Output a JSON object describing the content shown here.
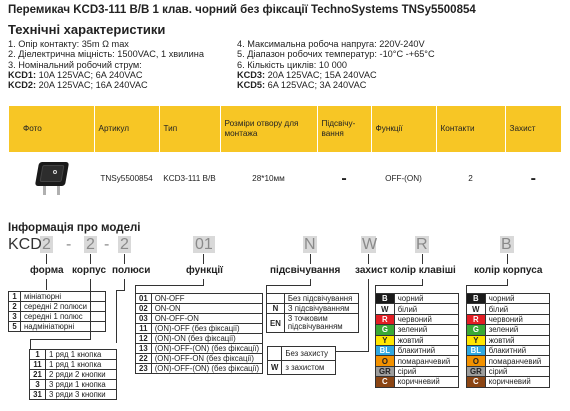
{
  "header": {
    "title": "Перемикач KCD3-111 B/B 1 клав. чорний без фіксації TechnoSystems TNSy5500854",
    "subtitle": "Технічні характеристики"
  },
  "specs_left": [
    "1. Опір контакту: 35m Ω  max",
    "2. Діелектрична міцність:  1500VAC, 1 хвилина",
    "3. Номінальний робочий струм:"
  ],
  "specs_left_models": [
    {
      "model": "KCD1:",
      "value": " 10A 125VAC; 6A 240VAC"
    },
    {
      "model": "KCD2:",
      "value": " 20A 125VAC; 16A 240VAC"
    }
  ],
  "specs_right": [
    "4. Максимальна робоча напруга: 220V-240V",
    "5. Діапазон робочих температур: -10°С -+65°С",
    "6. Кількість циклів: 10 000"
  ],
  "specs_right_models": [
    {
      "model": "KCD3:",
      "value": " 20A 125VAC; 15A 240VAC"
    },
    {
      "model": "KCD5:",
      "value": " 6A 125VAC; 3A 240VAC"
    }
  ],
  "table": {
    "headers": [
      "Фото",
      "Артикул",
      "Тип",
      "Розміри отвору для монтажа",
      "Підсвічу-вання",
      "Функції",
      "Контакти",
      "Захист"
    ],
    "row": {
      "article": "TNSy5500854",
      "type": "KCD3-111 B/B",
      "size": "28*10мм",
      "backlight": "-",
      "function": "OFF-(ON)",
      "contacts": "2",
      "protection": "-"
    }
  },
  "model_info": {
    "heading": "Інформація про моделі",
    "code": {
      "prefix": "KCD",
      "c1": "2",
      "sep1": "-",
      "c2": "2",
      "sep2": "-",
      "c3": "2",
      "c4": "01",
      "c5": "N",
      "c6": "W",
      "c7": "R",
      "c8": "B"
    },
    "labels": {
      "form": "форма",
      "body": "корпус",
      "poles": "полюси",
      "functions": "функції",
      "backlight": "підсвічування",
      "protection": "захист",
      "key_color": "колір клавіші",
      "body_color": "колір корпуса"
    },
    "form_options": [
      {
        "k": "1",
        "v": "мініатюрні"
      },
      {
        "k": "2",
        "v": "середні 2 полюси"
      },
      {
        "k": "3",
        "v": "середні 1 полюс"
      },
      {
        "k": "5",
        "v": "надмініатюрні"
      }
    ],
    "key_options": [
      {
        "k": "1",
        "v": "1 ряд 1 кнопка"
      },
      {
        "k": "11",
        "v": "1 ряд 1 кнопка"
      },
      {
        "k": "21",
        "v": "2 ряди 2 кнопки"
      },
      {
        "k": "3",
        "v": "3 ряди 1 кнопка"
      },
      {
        "k": "31",
        "v": "3 ряди 3 кнопки"
      }
    ],
    "function_options": [
      {
        "k": "01",
        "v": "ON-OFF"
      },
      {
        "k": "02",
        "v": "ON-ON"
      },
      {
        "k": "03",
        "v": "ON-OFF-ON"
      },
      {
        "k": "11",
        "v": "(ON)-OFF (без фіксації)"
      },
      {
        "k": "12",
        "v": "(ON)-ON (без фіксації)"
      },
      {
        "k": "13",
        "v": "(ON)-OFF-(ON) (без фіксації)"
      },
      {
        "k": "22",
        "v": "(ON)-OFF-ON (без фіксації)"
      },
      {
        "k": "23",
        "v": "(ON)-OFF-(ON) (без фіксації)"
      }
    ],
    "backlight_options": [
      {
        "k": "",
        "v": "Без підсвічування"
      },
      {
        "k": "N",
        "v": "З підсвічуванням"
      },
      {
        "k": "EN",
        "v": "3 точковим підсвічуванням"
      }
    ],
    "protection_options": [
      {
        "k": "",
        "v": "Без захисту"
      },
      {
        "k": "W",
        "v": "з захистом"
      }
    ],
    "key_colors": [
      {
        "k": "B",
        "v": "чорний",
        "bg": "#1a1a1a",
        "fg": "#ffffff"
      },
      {
        "k": "W",
        "v": "білий",
        "bg": "#ffffff",
        "fg": "#222222"
      },
      {
        "k": "R",
        "v": "червоний",
        "bg": "#e31e24",
        "fg": "#ffffff"
      },
      {
        "k": "G",
        "v": "зелений",
        "bg": "#3aa935",
        "fg": "#ffffff"
      },
      {
        "k": "Y",
        "v": "жовтий",
        "bg": "#ffe600",
        "fg": "#222222"
      },
      {
        "k": "BL",
        "v": "блакитний",
        "bg": "#2fa8e0",
        "fg": "#ffffff"
      },
      {
        "k": "O",
        "v": "помаранчевий",
        "bg": "#f39200",
        "fg": "#222222"
      },
      {
        "k": "GR",
        "v": "сірий",
        "bg": "#9d9d9c",
        "fg": "#222222"
      },
      {
        "k": "C",
        "v": "коричневий",
        "bg": "#8b4513",
        "fg": "#ffffff"
      }
    ],
    "body_colors": [
      {
        "k": "B",
        "v": "чорний",
        "bg": "#1a1a1a",
        "fg": "#ffffff"
      },
      {
        "k": "W",
        "v": "білий",
        "bg": "#ffffff",
        "fg": "#222222"
      },
      {
        "k": "R",
        "v": "червоний",
        "bg": "#e31e24",
        "fg": "#ffffff"
      },
      {
        "k": "G",
        "v": "зелений",
        "bg": "#3aa935",
        "fg": "#ffffff"
      },
      {
        "k": "Y",
        "v": "жовтий",
        "bg": "#ffe600",
        "fg": "#222222"
      },
      {
        "k": "BL",
        "v": "блакитний",
        "bg": "#2fa8e0",
        "fg": "#ffffff"
      },
      {
        "k": "O",
        "v": "помаранчевий",
        "bg": "#f39200",
        "fg": "#222222"
      },
      {
        "k": "GR",
        "v": "сірий",
        "bg": "#9d9d9c",
        "fg": "#222222"
      },
      {
        "k": "C",
        "v": "коричневий",
        "bg": "#8b4513",
        "fg": "#ffffff"
      }
    ]
  }
}
